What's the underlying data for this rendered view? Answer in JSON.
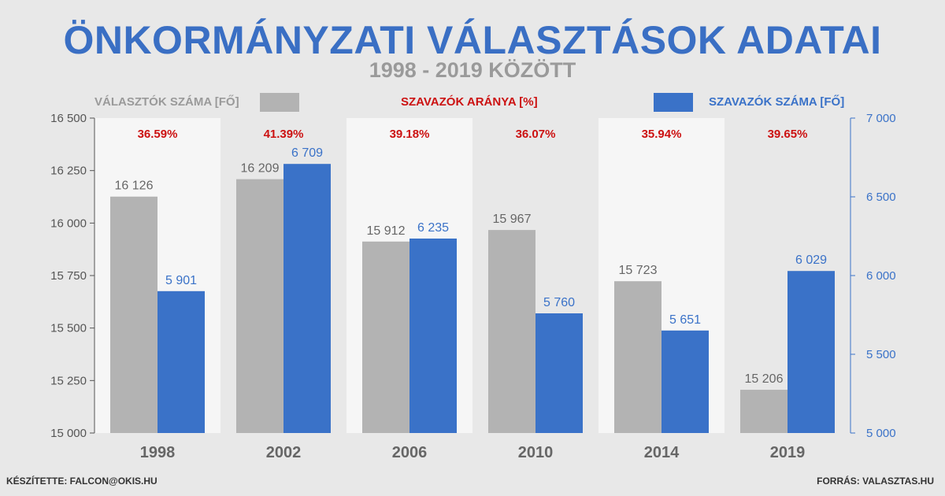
{
  "title": "ÖNKORMÁNYZATI VÁLASZTÁSOK ADATAI",
  "subtitle": "1998 - 2019 KÖZÖTT",
  "legend": {
    "voters_label": "VÁLASZTÓK SZÁMA [FŐ]",
    "ratio_label": "SZAVAZÓK ARÁNYA [%]",
    "votes_label": "SZAVAZÓK SZÁMA [FŐ]"
  },
  "footer": {
    "left": "KÉSZÍTETTE: FALCON@OKIS.HU",
    "right": "FORRÁS: VALASZTAS.HU"
  },
  "colors": {
    "voters": "#b3b3b3",
    "votes": "#3a72c8",
    "ratio": "#cc1111",
    "voters_label": "#9a9a9a",
    "band_light": "#f6f6f6",
    "band_dark": "#e8e8e8"
  },
  "chart_data": {
    "type": "bar",
    "categories": [
      "1998",
      "2002",
      "2006",
      "2010",
      "2014",
      "2019"
    ],
    "series": [
      {
        "name": "VÁLASZTÓK SZÁMA [FŐ]",
        "axis": "left",
        "values": [
          16126,
          16209,
          15912,
          15967,
          15723,
          15206
        ],
        "labels": [
          "16 126",
          "16 209",
          "15 912",
          "15 967",
          "15 723",
          "15 206"
        ]
      },
      {
        "name": "SZAVAZÓK SZÁMA [FŐ]",
        "axis": "right",
        "values": [
          5901,
          6709,
          6235,
          5760,
          5651,
          6029
        ],
        "labels": [
          "5 901",
          "6 709",
          "6 235",
          "5 760",
          "5 651",
          "6 029"
        ]
      }
    ],
    "ratio": {
      "name": "SZAVAZÓK ARÁNYA [%]",
      "labels": [
        "36.59%",
        "41.39%",
        "39.18%",
        "36.07%",
        "35.94%",
        "39.65%"
      ]
    },
    "y_left": {
      "min": 15000,
      "max": 16500,
      "ticks": [
        15000,
        15250,
        15500,
        15750,
        16000,
        16250,
        16500
      ],
      "tick_labels": [
        "15 000",
        "15 250",
        "15 500",
        "15 750",
        "16 000",
        "16 250",
        "16 500"
      ]
    },
    "y_right": {
      "min": 5000,
      "max": 7000,
      "ticks": [
        5000,
        5500,
        6000,
        6500,
        7000
      ],
      "tick_labels": [
        "5 000",
        "5 500",
        "6 000",
        "6 500",
        "7 000"
      ]
    },
    "grid": false,
    "legend_position": "top"
  }
}
